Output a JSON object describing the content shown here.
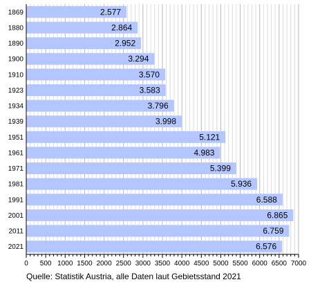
{
  "chart_data": {
    "type": "bar",
    "orientation": "horizontal",
    "categories": [
      "1869",
      "1880",
      "1890",
      "1900",
      "1910",
      "1923",
      "1934",
      "1939",
      "1951",
      "1961",
      "1971",
      "1981",
      "1991",
      "2001",
      "2011",
      "2021"
    ],
    "values": [
      2577,
      2864,
      2952,
      3294,
      3570,
      3583,
      3796,
      3998,
      5121,
      4983,
      5399,
      5936,
      6588,
      6865,
      6759,
      6576
    ],
    "value_labels": [
      "2.577",
      "2.864",
      "2.952",
      "3.294",
      "3.570",
      "3.583",
      "3.796",
      "3.998",
      "5.121",
      "4.983",
      "5.399",
      "5.936",
      "6.588",
      "6.865",
      "6.759",
      "6.576"
    ],
    "xlim": [
      0,
      7000
    ],
    "x_ticks": [
      0,
      500,
      1000,
      1500,
      2000,
      2500,
      3000,
      3500,
      4000,
      4500,
      5000,
      5500,
      6000,
      6500,
      7000
    ],
    "grid": "vertical",
    "bar_color": "#b3c6ff",
    "source": "Quelle: Statistik Austria, alle Daten laut Gebietsstand 2021"
  }
}
